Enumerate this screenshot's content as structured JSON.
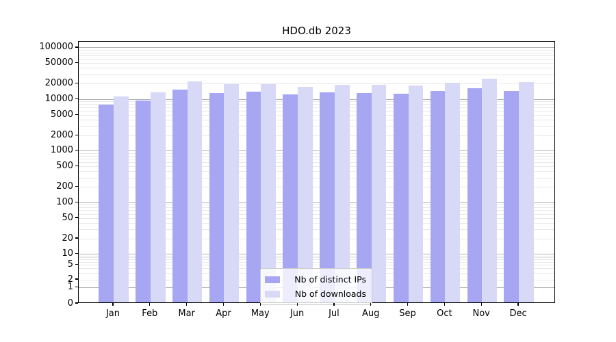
{
  "chart_data": {
    "type": "bar",
    "title": "HDO.db 2023",
    "categories": [
      "Jan 2023",
      "Feb 2023",
      "Mar 2023",
      "Apr 2023",
      "May 2023",
      "Jun 2023",
      "Jul 2023",
      "Aug 2023",
      "Sep 2023",
      "Oct 2023",
      "Nov 2023",
      "Dec 2023"
    ],
    "series": [
      {
        "name": "Nb of distinct IPs",
        "color": "#a6a6f2",
        "values": [
          7600,
          9200,
          14900,
          13000,
          13600,
          12200,
          13300,
          12800,
          12400,
          14300,
          15800,
          14200
        ]
      },
      {
        "name": "Nb of downloads",
        "color": "#d8d8f7",
        "values": [
          11100,
          13400,
          21700,
          19000,
          19000,
          16900,
          18800,
          18500,
          18100,
          20400,
          24300,
          21000
        ]
      }
    ],
    "yscale": "symlog",
    "ylim": [
      0,
      131000
    ],
    "y_tick_labels": [
      "100000",
      "50000",
      "20000",
      "10000",
      "5000",
      "2000",
      "1000",
      "500",
      "200",
      "100",
      "50",
      "20",
      "10",
      "5",
      "2",
      "1",
      "0"
    ],
    "grid": "both",
    "legend_position": "lower center"
  },
  "colors": {
    "major_grid": "#b0b0b0",
    "minor_grid": "#e8e8e8",
    "spine": "#000000",
    "background": "#ffffff"
  }
}
